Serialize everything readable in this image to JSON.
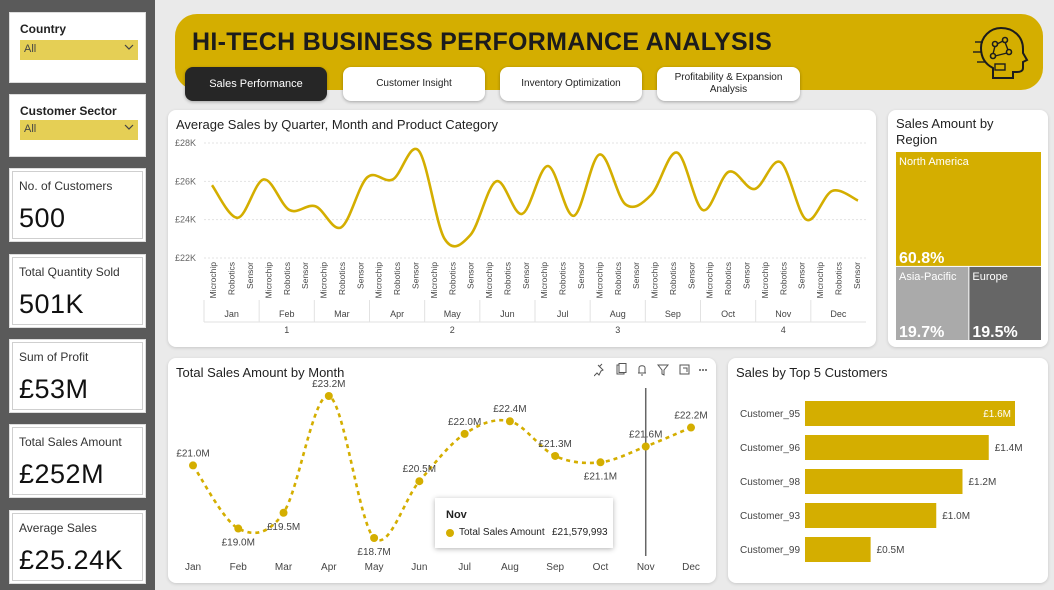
{
  "sidebar": {
    "country": {
      "title": "Country",
      "value": "All"
    },
    "sector": {
      "title": "Customer Sector",
      "value": "All"
    },
    "kpis": [
      {
        "label": "No. of Customers",
        "value": "500"
      },
      {
        "label": "Total Quantity Sold",
        "value": "501K"
      },
      {
        "label": "Sum of Profit",
        "value": "£53M"
      },
      {
        "label": "Total Sales Amount",
        "value": "£252M"
      },
      {
        "label": "Average Sales",
        "value": "£25.24K"
      }
    ]
  },
  "header": {
    "title": "HI-TECH BUSINESS PERFORMANCE ANALYSIS",
    "logo_icon": "ai-head-icon",
    "tabs": [
      {
        "label": "Sales Performance",
        "active": true
      },
      {
        "label": "Customer Insight",
        "active": false
      },
      {
        "label": "Inventory Optimization",
        "active": false
      },
      {
        "label": "Profitability & Expansion Analysis",
        "active": false
      }
    ]
  },
  "colors": {
    "accent": "#d4ae00",
    "dark": "#262626",
    "gray": "#aaaaaa",
    "dark_gray": "#666666"
  },
  "chart_data": [
    {
      "type": "line",
      "title": "Average Sales by Quarter, Month and Product Category",
      "y_ticks": [
        "£28K",
        "£26K",
        "£24K",
        "£22K"
      ],
      "ylim": [
        22000,
        28000
      ],
      "product_categories": [
        "Microchip",
        "Robotics",
        "Sensor"
      ],
      "months": [
        "Jan",
        "Feb",
        "Mar",
        "Apr",
        "May",
        "Jun",
        "Jul",
        "Aug",
        "Sep",
        "Oct",
        "Nov",
        "Dec"
      ],
      "quarters": [
        "1",
        "2",
        "3",
        "4"
      ],
      "values": [
        25800,
        24100,
        26100,
        24500,
        24700,
        23600,
        26200,
        26100,
        27600,
        23000,
        23200,
        26000,
        24300,
        26800,
        24200,
        27400,
        24800,
        25300,
        27500,
        24500,
        26500,
        25600,
        27000,
        24000,
        25500,
        25000
      ]
    },
    {
      "type": "line",
      "title": "Total Sales Amount by Month",
      "categories": [
        "Jan",
        "Feb",
        "Mar",
        "Apr",
        "May",
        "Jun",
        "Jul",
        "Aug",
        "Sep",
        "Oct",
        "Nov",
        "Dec"
      ],
      "values": [
        21.0,
        19.0,
        19.5,
        23.2,
        18.7,
        20.5,
        22.0,
        22.4,
        21.3,
        21.1,
        21.6,
        22.2
      ],
      "data_labels": [
        "£21.0M",
        "£19.0M",
        "£19.5M",
        "£23.2M",
        "£18.7M",
        "£20.5M",
        "£22.0M",
        "£22.4M",
        "£21.3M",
        "£21.1M",
        "£21.6M",
        "£22.2M"
      ],
      "tooltip": {
        "month": "Nov",
        "label": "Total Sales Amount",
        "value": "£21,579,993"
      }
    },
    {
      "type": "bar",
      "title": "Sales by Top 5 Customers",
      "categories": [
        "Customer_95",
        "Customer_96",
        "Customer_98",
        "Customer_93",
        "Customer_99"
      ],
      "values": [
        1.6,
        1.4,
        1.2,
        1.0,
        0.5
      ],
      "data_labels": [
        "£1.6M",
        "£1.4M",
        "£1.2M",
        "£1.0M",
        "£0.5M"
      ]
    },
    {
      "type": "treemap",
      "title": "Sales Amount by Region",
      "categories": [
        "North America",
        "Asia-Pacific",
        "Europe"
      ],
      "values": [
        60.8,
        19.7,
        19.5
      ],
      "data_labels": [
        "60.8%",
        "19.7%",
        "19.5%"
      ]
    }
  ]
}
